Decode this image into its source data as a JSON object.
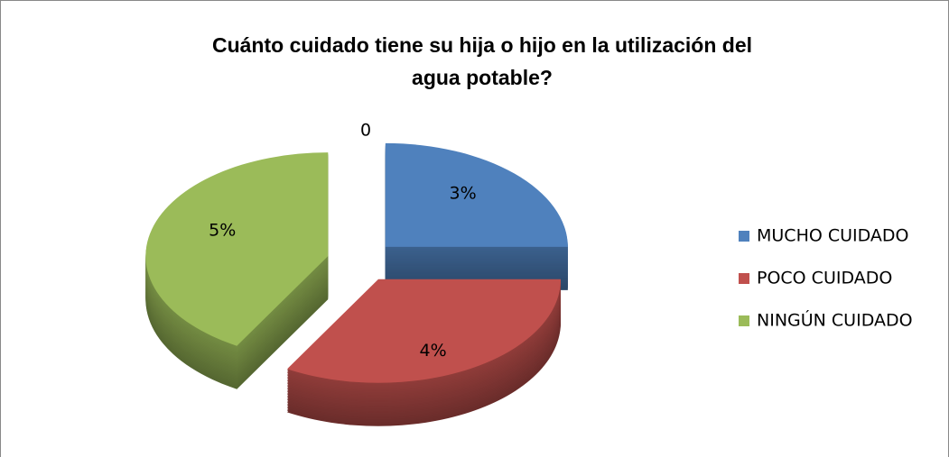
{
  "chart_data": {
    "type": "pie3d",
    "title": "Cuánto cuidado tiene su hija o hijo en la utilización del agua potable?",
    "categories": [
      "MUCHO CUIDADO",
      "POCO CUIDADO",
      "NINGÚN CUIDADO"
    ],
    "values": [
      3,
      4,
      5
    ],
    "value_labels": [
      "3%",
      "4%",
      "5%"
    ],
    "colors": [
      "#4f81bd",
      "#c0504d",
      "#9bbb59"
    ],
    "annotation": "0",
    "legend": "right"
  }
}
